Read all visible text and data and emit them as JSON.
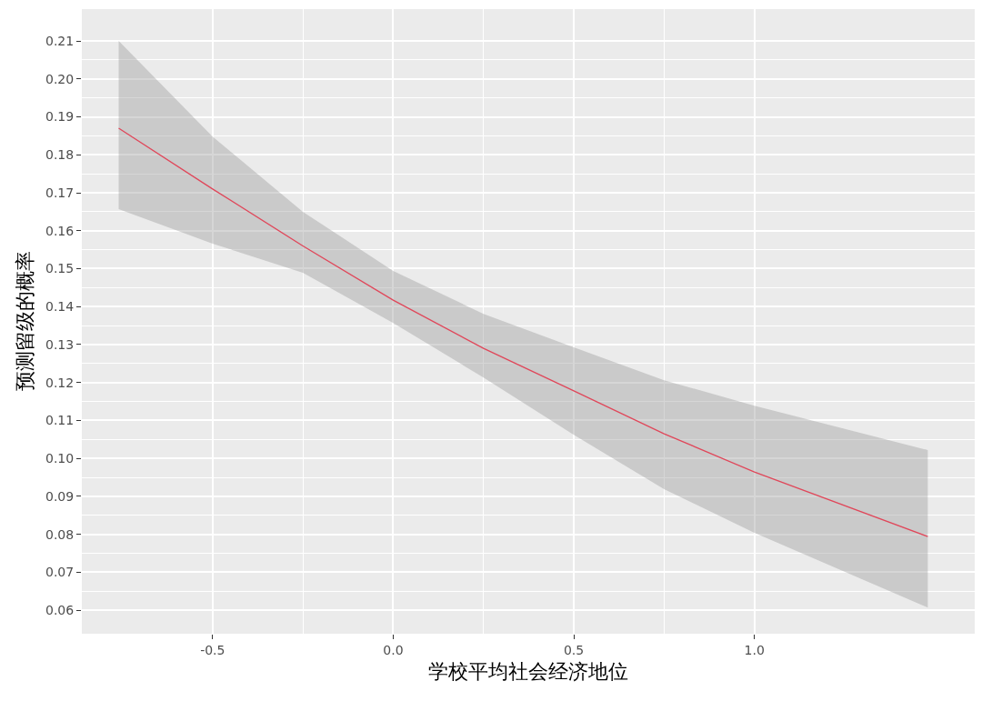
{
  "chart_data": {
    "type": "line",
    "xlabel": "学校平均社会经济地位",
    "ylabel": "预测留级的概率",
    "x": [
      -0.76,
      -0.5,
      -0.25,
      0,
      0.25,
      0.5,
      0.75,
      1.0,
      1.48
    ],
    "series": [
      {
        "color": "#e0475a",
        "values": [
          0.187,
          0.171,
          0.156,
          0.1417,
          0.129,
          0.1178,
          0.1065,
          0.0964,
          0.0794
        ],
        "lower": [
          0.1657,
          0.1566,
          0.1489,
          0.1357,
          0.1213,
          0.1062,
          0.0919,
          0.0804,
          0.0607
        ],
        "upper": [
          0.21,
          0.1848,
          0.165,
          0.1494,
          0.1381,
          0.1293,
          0.1206,
          0.1139,
          0.1022
        ]
      }
    ],
    "xlim": [
      -0.862,
      1.61
    ],
    "xticks": [
      -0.5,
      {
        "value": 0,
        "label": "0.0"
      },
      0.5,
      {
        "value": 1,
        "label": "1.0"
      }
    ],
    "ylim": [
      0.0538,
      0.2184
    ],
    "yticks": [
      0.06,
      0.07,
      0.08,
      0.09,
      {
        "value": 0.1,
        "label": "0.10"
      },
      0.11,
      0.12,
      0.13,
      0.14,
      0.15,
      0.16,
      0.17,
      0.18,
      0.19,
      {
        "value": 0.2,
        "label": "0.20"
      },
      0.21
    ],
    "grid": true,
    "marker": "none",
    "line_style": "solid"
  }
}
